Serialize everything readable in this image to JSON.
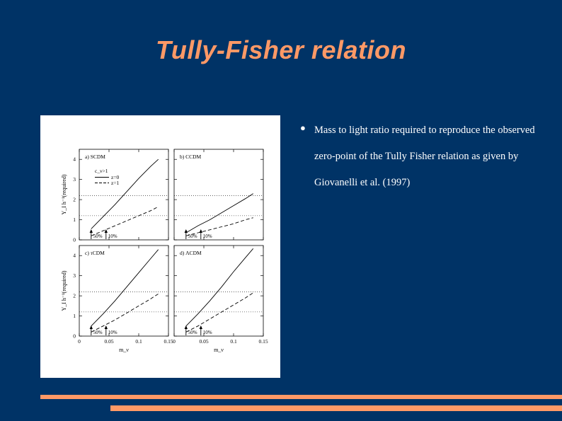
{
  "slide": {
    "title": "Tully-Fisher relation",
    "bullet_symbol": "●",
    "bullet_text": "Mass to light ratio required to reproduce the observed zero-point of the Tully Fisher relation as given by Giovanelli et al. (1997)"
  },
  "colors": {
    "background": "#003366",
    "accent": "#ff9966",
    "text": "#ffffff"
  },
  "chart_data": {
    "type": "line",
    "ylabel": "Υ_I h⁻¹(required)",
    "xlabel": "m_ν",
    "xlim": [
      0,
      0.15
    ],
    "ylim": [
      0,
      4.5
    ],
    "xticks": [
      "0",
      "0.05",
      "0.1",
      "0.15"
    ],
    "yticks": [
      "0",
      "1",
      "2",
      "3",
      "4"
    ],
    "legend": {
      "condition": "c_ν>1",
      "entries": [
        "z=0",
        "z=1"
      ]
    },
    "arrow_labels": [
      "50%",
      "10%"
    ],
    "panels": [
      {
        "label": "a) SCDM",
        "series": [
          {
            "name": "z=0",
            "style": "solid",
            "x": [
              0.02,
              0.04,
              0.06,
              0.08,
              0.1,
              0.12,
              0.133
            ],
            "y": [
              0.55,
              1.15,
              1.75,
              2.4,
              3.05,
              3.65,
              4.0
            ]
          },
          {
            "name": "z=1",
            "style": "dashed",
            "x": [
              0.02,
              0.04,
              0.06,
              0.08,
              0.1,
              0.12,
              0.133
            ],
            "y": [
              0.2,
              0.45,
              0.7,
              0.95,
              1.2,
              1.45,
              1.65
            ]
          }
        ]
      },
      {
        "label": "b) CCDM",
        "series": [
          {
            "name": "z=0",
            "style": "solid",
            "x": [
              0.02,
              0.04,
              0.06,
              0.08,
              0.1,
              0.12,
              0.133
            ],
            "y": [
              0.35,
              0.7,
              1.0,
              1.35,
              1.7,
              2.05,
              2.3
            ]
          },
          {
            "name": "z=1",
            "style": "dashed",
            "x": [
              0.02,
              0.04,
              0.06,
              0.08,
              0.1,
              0.12,
              0.133
            ],
            "y": [
              0.2,
              0.35,
              0.5,
              0.65,
              0.8,
              1.0,
              1.1
            ]
          }
        ]
      },
      {
        "label": "c) τCDM",
        "series": [
          {
            "name": "z=0",
            "style": "solid",
            "x": [
              0.02,
              0.04,
              0.06,
              0.08,
              0.1,
              0.12,
              0.133
            ],
            "y": [
              0.5,
              1.1,
              1.75,
              2.45,
              3.15,
              3.85,
              4.3
            ]
          },
          {
            "name": "z=1",
            "style": "dashed",
            "x": [
              0.02,
              0.04,
              0.06,
              0.08,
              0.1,
              0.12,
              0.133
            ],
            "y": [
              0.2,
              0.5,
              0.8,
              1.15,
              1.5,
              1.85,
              2.1
            ]
          }
        ]
      },
      {
        "label": "d) ΛCDM",
        "series": [
          {
            "name": "z=0",
            "style": "solid",
            "x": [
              0.02,
              0.04,
              0.06,
              0.08,
              0.1,
              0.12,
              0.133
            ],
            "y": [
              0.5,
              1.1,
              1.75,
              2.45,
              3.2,
              3.9,
              4.35
            ]
          },
          {
            "name": "z=1",
            "style": "dashed",
            "x": [
              0.02,
              0.04,
              0.06,
              0.08,
              0.1,
              0.12,
              0.133
            ],
            "y": [
              0.2,
              0.5,
              0.85,
              1.2,
              1.55,
              1.9,
              2.15
            ]
          }
        ]
      }
    ],
    "reference_lines": [
      {
        "style": "dotted",
        "y": 2.2
      },
      {
        "style": "dotted",
        "y": 1.2
      }
    ]
  }
}
